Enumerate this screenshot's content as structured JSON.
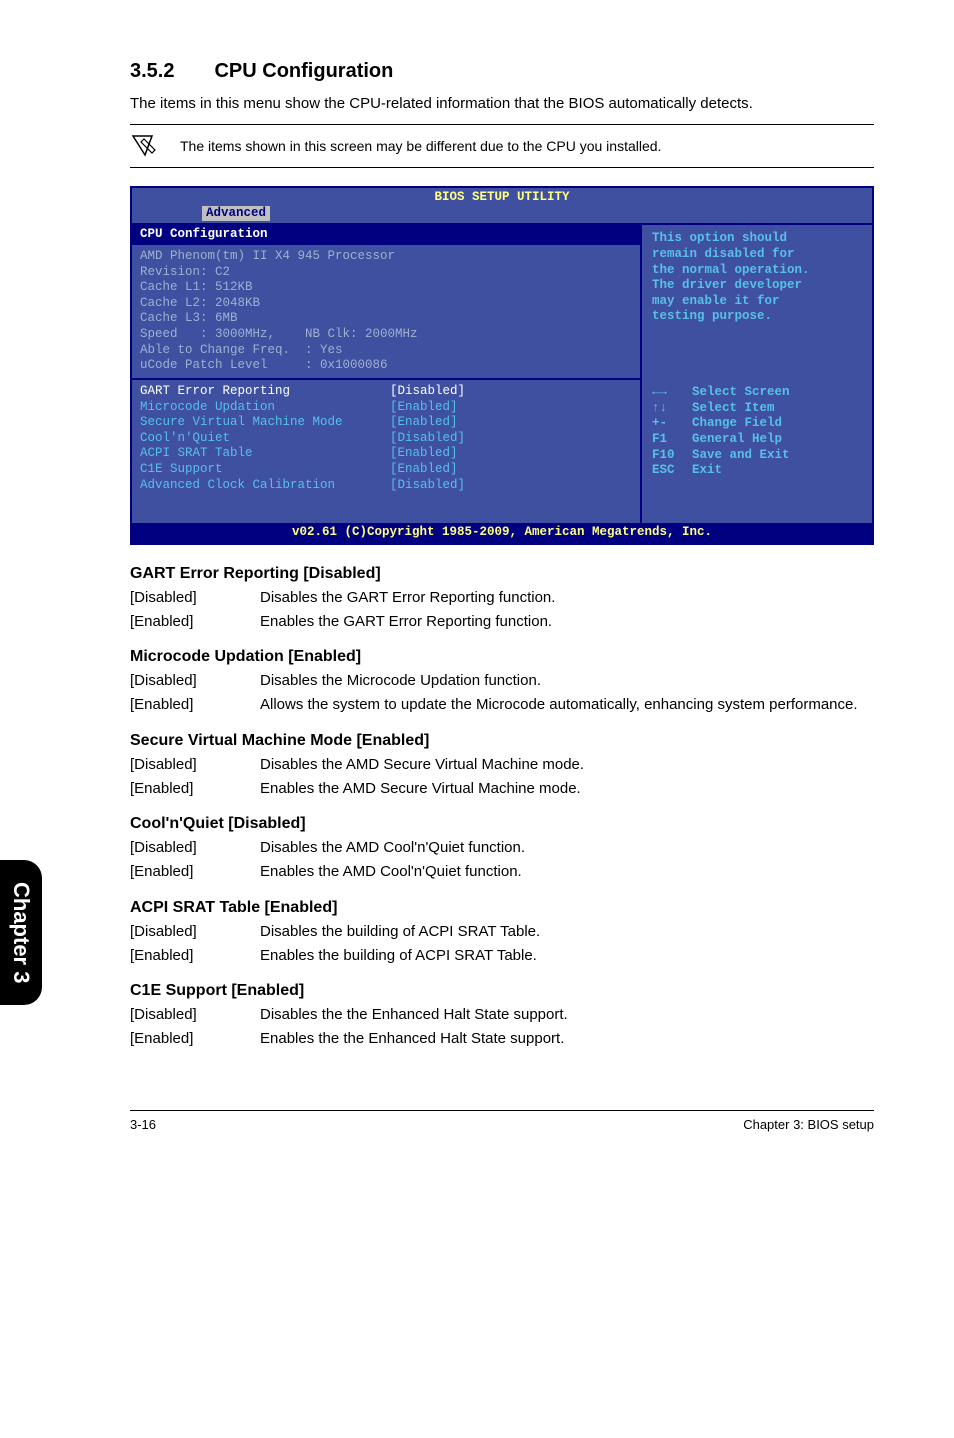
{
  "section": {
    "number": "3.5.2",
    "title": "CPU Configuration"
  },
  "intro": "The items in this menu show the CPU-related information that the BIOS automatically detects.",
  "note": "The items shown in this screen may be different due to the CPU you installed.",
  "bios": {
    "title": "BIOS SETUP UTILITY",
    "tab": "Advanced",
    "header": "CPU Configuration",
    "info": [
      "AMD Phenom(tm) II X4 945 Processor",
      "Revision: C2",
      "Cache L1: 512KB",
      "Cache L2: 2048KB",
      "Cache L3: 6MB",
      "Speed   : 3000MHz,    NB Clk: 2000MHz",
      "Able to Change Freq.  : Yes",
      "uCode Patch Level     : 0x1000086"
    ],
    "options": [
      {
        "label": "GART Error Reporting",
        "value": "[Disabled]",
        "hl": true
      },
      {
        "label": "Microcode Updation",
        "value": "[Enabled]",
        "hl": false
      },
      {
        "label": "Secure Virtual Machine Mode",
        "value": "[Enabled]",
        "hl": false
      },
      {
        "label": "Cool'n'Quiet",
        "value": "[Disabled]",
        "hl": false
      },
      {
        "label": "ACPI SRAT Table",
        "value": "[Enabled]",
        "hl": false
      },
      {
        "label": "C1E Support",
        "value": "[Enabled]",
        "hl": false
      },
      {
        "label": "Advanced Clock Calibration",
        "value": "[Disabled]",
        "hl": false
      }
    ],
    "help": "This option should\nremain disabled for\nthe normal operation.\nThe driver developer\nmay enable it for\ntesting purpose.",
    "nav": [
      {
        "key": "←→",
        "text": "Select Screen"
      },
      {
        "key": "↑↓",
        "text": "Select Item"
      },
      {
        "key": "+-",
        "text": "Change Field"
      },
      {
        "key": "F1",
        "text": "General Help"
      },
      {
        "key": "F10",
        "text": "Save and Exit"
      },
      {
        "key": "ESC",
        "text": "Exit"
      }
    ],
    "footer": "v02.61 (C)Copyright 1985-2009, American Megatrends, Inc."
  },
  "settings": [
    {
      "title": "GART Error Reporting [Disabled]",
      "rows": [
        {
          "k": "[Disabled]",
          "v": "Disables the GART Error Reporting function."
        },
        {
          "k": "[Enabled]",
          "v": "Enables the GART Error Reporting function."
        }
      ]
    },
    {
      "title": "Microcode Updation [Enabled]",
      "rows": [
        {
          "k": "[Disabled]",
          "v": "Disables the Microcode Updation function."
        },
        {
          "k": "[Enabled]",
          "v": "Allows the system to update the Microcode automatically, enhancing system performance."
        }
      ]
    },
    {
      "title": "Secure Virtual Machine Mode [Enabled]",
      "rows": [
        {
          "k": "[Disabled]",
          "v": "Disables the AMD Secure Virtual Machine mode."
        },
        {
          "k": "[Enabled]",
          "v": "Enables the AMD Secure Virtual Machine mode."
        }
      ]
    },
    {
      "title": "Cool'n'Quiet [Disabled]",
      "rows": [
        {
          "k": "[Disabled]",
          "v": "Disables the AMD Cool'n'Quiet function."
        },
        {
          "k": "[Enabled]",
          "v": "Enables the AMD Cool'n'Quiet function."
        }
      ]
    },
    {
      "title": "ACPI SRAT Table [Enabled]",
      "rows": [
        {
          "k": "[Disabled]",
          "v": "Disables the building of ACPI SRAT Table."
        },
        {
          "k": "[Enabled]",
          "v": "Enables the building of ACPI SRAT Table."
        }
      ]
    },
    {
      "title": "C1E Support [Enabled]",
      "rows": [
        {
          "k": "[Disabled]",
          "v": "Disables the the Enhanced Halt State support."
        },
        {
          "k": "[Enabled]",
          "v": "Enables the the Enhanced Halt State support."
        }
      ]
    }
  ],
  "sideTab": "Chapter 3",
  "footer": {
    "left": "3-16",
    "right": "Chapter 3: BIOS setup"
  }
}
